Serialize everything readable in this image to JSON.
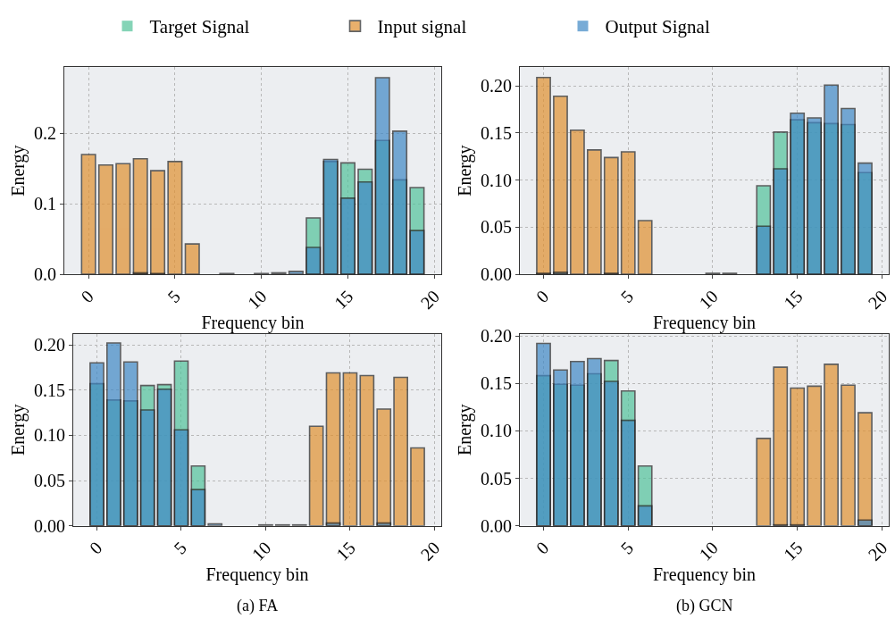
{
  "chart_data": [
    {
      "type": "bar",
      "xlabel": "Frequency bin",
      "ylabel": "Energy",
      "legend": "top",
      "grid": true,
      "x": [
        0,
        1,
        2,
        3,
        4,
        5,
        6,
        7,
        8,
        9,
        10,
        11,
        12,
        13,
        14,
        15,
        16,
        17,
        18,
        19
      ],
      "xlim": [
        -1.4,
        20.4
      ],
      "ylim": [
        0,
        0.294
      ],
      "xticks": [
        0,
        5,
        10,
        15,
        20
      ],
      "yticks": [
        {
          "value": 0,
          "label": "0.0"
        },
        {
          "value": 0.1,
          "label": "0.1"
        },
        {
          "value": 0.2,
          "label": "0.2"
        }
      ],
      "series": [
        {
          "name": "Target Signal",
          "color": "#52c29a",
          "values": [
            0,
            0,
            0,
            0,
            0,
            0,
            0,
            0,
            0,
            0,
            0,
            0,
            0,
            0.08,
            0.16,
            0.158,
            0.149,
            0.19,
            0.134,
            0.123
          ]
        },
        {
          "name": "Input signal",
          "color": "#e0902f",
          "values": [
            0.17,
            0.155,
            0.157,
            0.164,
            0.147,
            0.16,
            0.043,
            0,
            0,
            0,
            0,
            0,
            0,
            0,
            0,
            0,
            0,
            0,
            0,
            0
          ]
        },
        {
          "name": "Output Signal",
          "color": "#3f88c5",
          "values": [
            0,
            0,
            0,
            0.002,
            0.001,
            0,
            0,
            0,
            0.001,
            0,
            0.001,
            0.002,
            0.004,
            0.038,
            0.163,
            0.108,
            0.131,
            0.279,
            0.203,
            0.062
          ]
        }
      ]
    },
    {
      "type": "bar",
      "xlabel": "Frequency bin",
      "ylabel": "Energy",
      "grid": true,
      "x": [
        0,
        1,
        2,
        3,
        4,
        5,
        6,
        7,
        8,
        9,
        10,
        11,
        12,
        13,
        14,
        15,
        16,
        17,
        18,
        19
      ],
      "xlim": [
        -1.4,
        20.4
      ],
      "ylim": [
        0,
        0.22
      ],
      "xticks": [
        0,
        5,
        10,
        15,
        20
      ],
      "yticks": [
        {
          "value": 0,
          "label": "0.00"
        },
        {
          "value": 0.05,
          "label": "0.05"
        },
        {
          "value": 0.1,
          "label": "0.10"
        },
        {
          "value": 0.15,
          "label": "0.15"
        },
        {
          "value": 0.2,
          "label": "0.20"
        }
      ],
      "series": [
        {
          "color": "#52c29a",
          "values": [
            0,
            0,
            0,
            0,
            0,
            0,
            0,
            0,
            0,
            0,
            0,
            0,
            0,
            0.094,
            0.151,
            0.164,
            0.161,
            0.16,
            0.159,
            0.108
          ]
        },
        {
          "color": "#e0902f",
          "values": [
            0.209,
            0.189,
            0.153,
            0.132,
            0.124,
            0.13,
            0.057,
            0,
            0,
            0,
            0.001,
            0.001,
            0,
            0,
            0,
            0,
            0,
            0,
            0,
            0
          ]
        },
        {
          "color": "#3f88c5",
          "values": [
            0.001,
            0.002,
            0,
            0,
            0.001,
            0,
            0,
            0,
            0,
            0,
            0,
            0,
            0,
            0.051,
            0.112,
            0.171,
            0.166,
            0.201,
            0.176,
            0.118
          ]
        }
      ]
    },
    {
      "type": "bar",
      "xlabel": "Frequency bin",
      "ylabel": "Energy",
      "grid": true,
      "annotations": [
        "(a) FA"
      ],
      "x": [
        0,
        1,
        2,
        3,
        4,
        5,
        6,
        7,
        8,
        9,
        10,
        11,
        12,
        13,
        14,
        15,
        16,
        17,
        18,
        19
      ],
      "xlim": [
        -1.4,
        20.4
      ],
      "ylim": [
        0,
        0.212
      ],
      "xticks": [
        0,
        5,
        10,
        15,
        20
      ],
      "yticks": [
        {
          "value": 0,
          "label": "0.00"
        },
        {
          "value": 0.05,
          "label": "0.05"
        },
        {
          "value": 0.1,
          "label": "0.10"
        },
        {
          "value": 0.15,
          "label": "0.15"
        },
        {
          "value": 0.2,
          "label": "0.20"
        }
      ],
      "series": [
        {
          "color": "#52c29a",
          "values": [
            0.157,
            0.139,
            0.138,
            0.155,
            0.156,
            0.182,
            0.066,
            null,
            0,
            0,
            0,
            0,
            0,
            0,
            0,
            0,
            0,
            0,
            0,
            0
          ]
        },
        {
          "color": "#e0902f",
          "values": [
            0,
            0,
            0,
            0,
            0,
            0,
            0,
            0,
            0,
            0,
            0.001,
            0.001,
            0.001,
            0.11,
            0.169,
            0.169,
            0.166,
            0.129,
            0.164,
            0.086
          ]
        },
        {
          "color": "#3f88c5",
          "values": [
            0.18,
            0.202,
            0.181,
            0.128,
            0.151,
            0.106,
            0.04,
            0.002,
            0,
            0,
            0,
            0,
            0,
            0,
            0.003,
            0,
            0,
            0.003,
            0,
            0
          ]
        }
      ]
    },
    {
      "type": "bar",
      "xlabel": "Frequency bin",
      "ylabel": "Energy",
      "grid": true,
      "annotations": [
        "(b) GCN"
      ],
      "x": [
        0,
        1,
        2,
        3,
        4,
        5,
        6,
        7,
        8,
        9,
        10,
        11,
        12,
        13,
        14,
        15,
        16,
        17,
        18,
        19
      ],
      "xlim": [
        -1.4,
        20.4
      ],
      "ylim": [
        0,
        0.202
      ],
      "xticks": [
        0,
        5,
        10,
        15,
        20
      ],
      "yticks": [
        {
          "value": 0,
          "label": "0.00"
        },
        {
          "value": 0.05,
          "label": "0.05"
        },
        {
          "value": 0.1,
          "label": "0.10"
        },
        {
          "value": 0.15,
          "label": "0.15"
        },
        {
          "value": 0.2,
          "label": "0.20"
        }
      ],
      "series": [
        {
          "color": "#52c29a",
          "values": [
            0.158,
            0.149,
            0.148,
            0.16,
            0.174,
            0.142,
            0.063,
            0,
            0,
            0,
            0,
            0,
            0,
            0,
            0,
            0,
            0,
            0,
            0,
            0
          ]
        },
        {
          "color": "#e0902f",
          "values": [
            0,
            0,
            0,
            0,
            0,
            0,
            0,
            0,
            0,
            0,
            0,
            0,
            0,
            0.092,
            0.167,
            0.145,
            0.147,
            0.17,
            0.148,
            0.119
          ]
        },
        {
          "color": "#3f88c5",
          "values": [
            0.192,
            0.164,
            0.173,
            0.176,
            0.152,
            0.111,
            0.021,
            0,
            0,
            0,
            0,
            0,
            0,
            0,
            0.001,
            0.001,
            0,
            0,
            0,
            0.006
          ]
        }
      ]
    }
  ]
}
